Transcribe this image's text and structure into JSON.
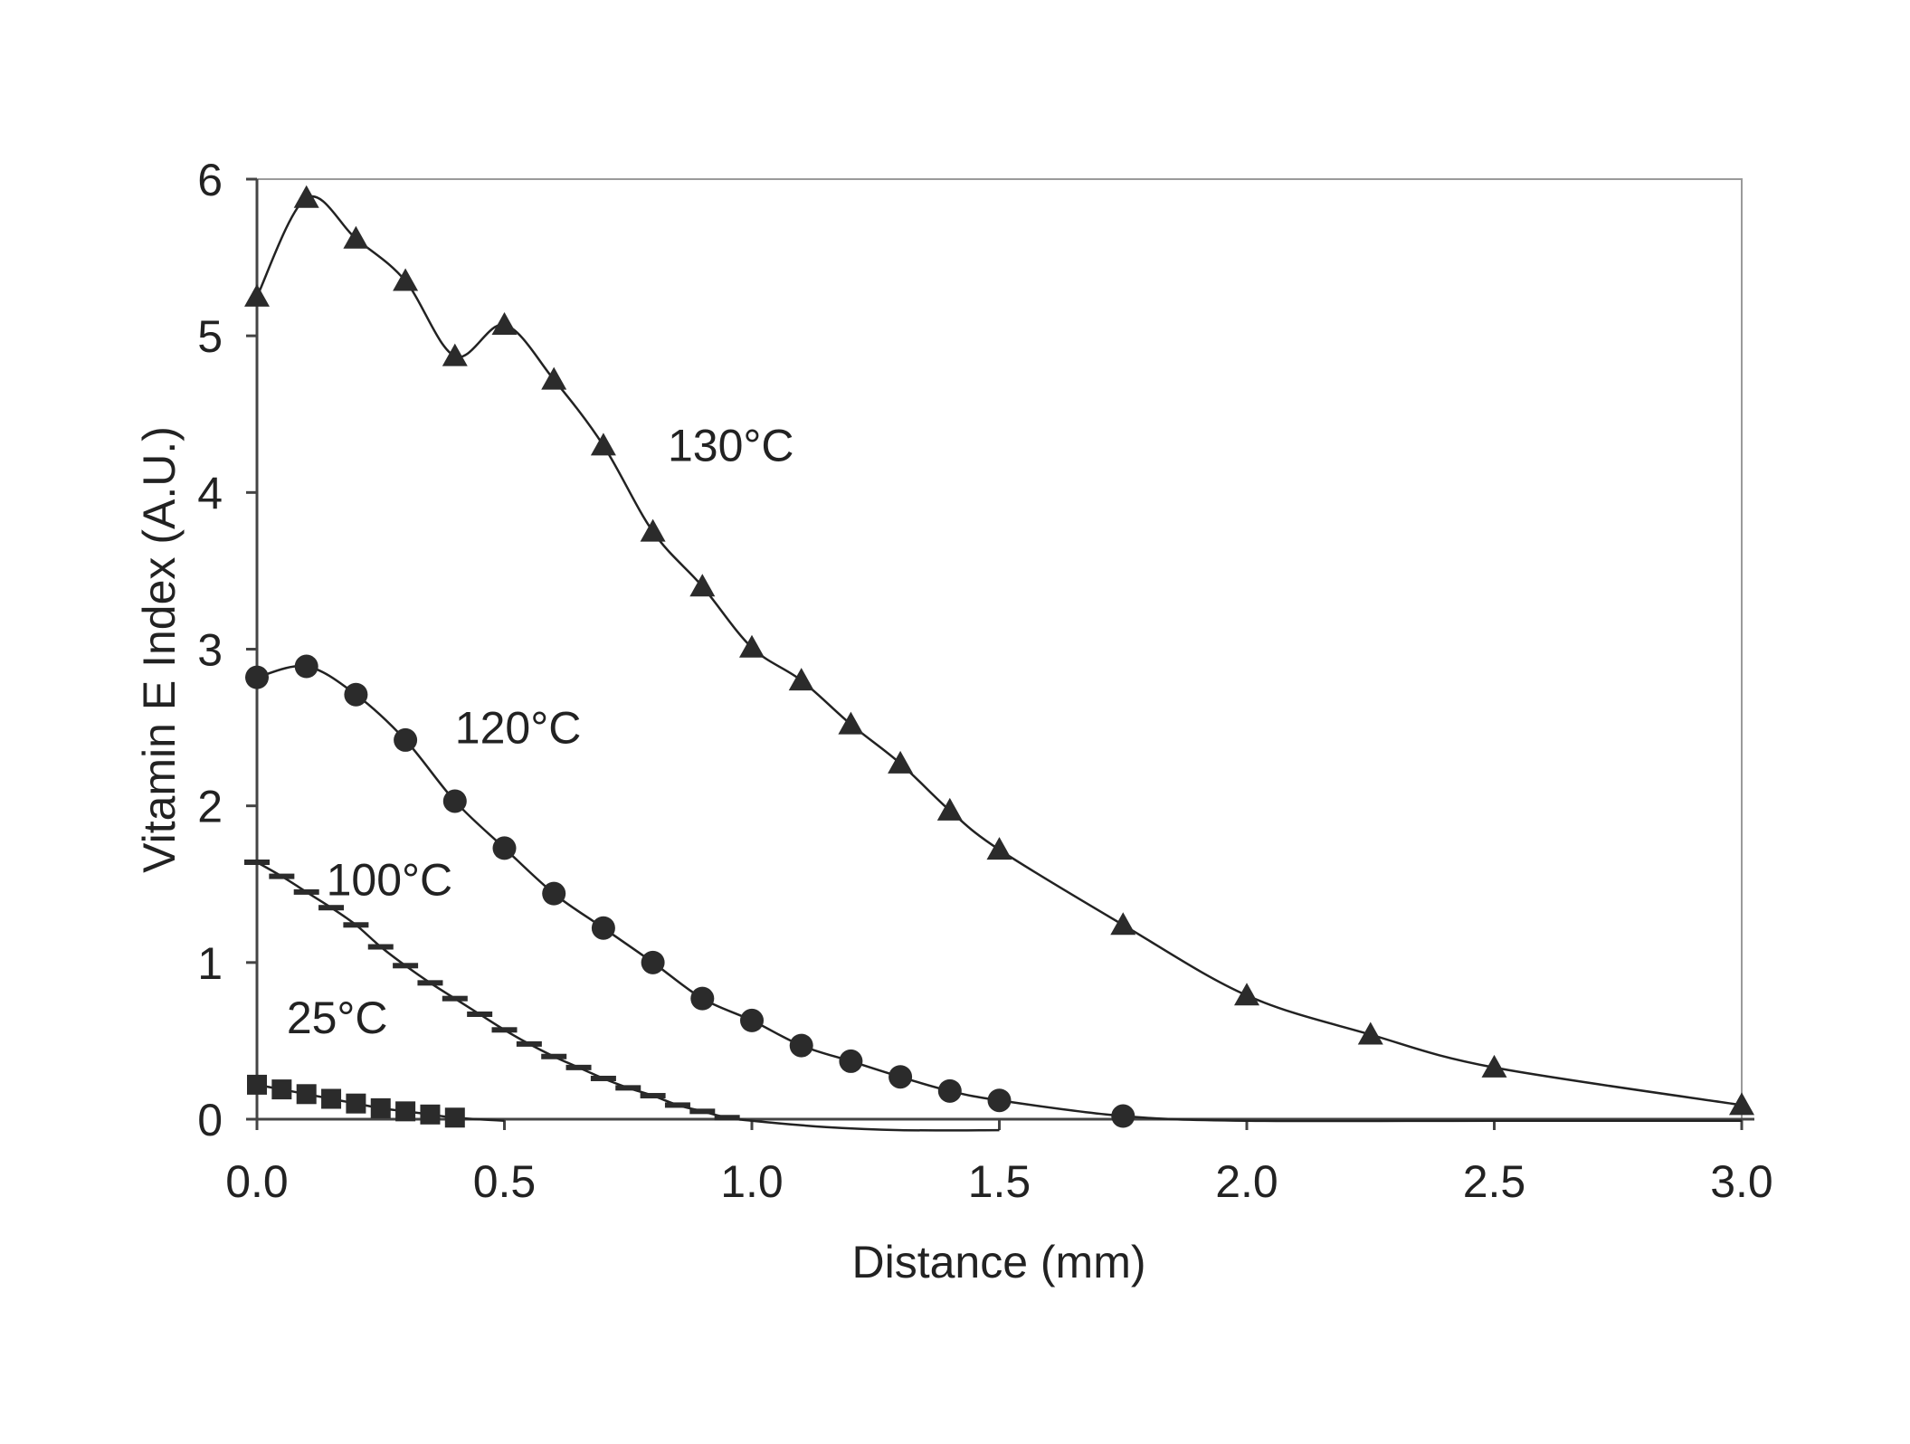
{
  "chart_data": {
    "type": "line",
    "xlabel": "Distance (mm)",
    "ylabel": "Vitamin E Index (A.U.)",
    "xlim": [
      0,
      3.0
    ],
    "ylim": [
      0,
      6
    ],
    "x_ticks": [
      "0.0",
      "0.5",
      "1.0",
      "1.5",
      "2.0",
      "2.5",
      "3.0"
    ],
    "y_ticks": [
      "0",
      "1",
      "2",
      "3",
      "4",
      "5",
      "6"
    ],
    "grid": false,
    "legend": "none",
    "series": [
      {
        "name": "130°C",
        "marker": "triangle",
        "x": [
          0.0,
          0.1,
          0.2,
          0.3,
          0.4,
          0.5,
          0.6,
          0.7,
          0.8,
          0.9,
          1.0,
          1.1,
          1.2,
          1.3,
          1.4,
          1.5,
          1.75,
          2.0,
          2.25,
          2.5,
          3.0
        ],
        "y": [
          5.25,
          5.88,
          5.62,
          5.35,
          4.87,
          5.07,
          4.72,
          4.3,
          3.75,
          3.4,
          3.01,
          2.8,
          2.52,
          2.27,
          1.97,
          1.72,
          1.24,
          0.79,
          0.54,
          0.33,
          0.09
        ]
      },
      {
        "name": "120°C",
        "marker": "circle",
        "x": [
          0.0,
          0.1,
          0.2,
          0.3,
          0.4,
          0.5,
          0.6,
          0.7,
          0.8,
          0.9,
          1.0,
          1.1,
          1.2,
          1.3,
          1.4,
          1.5,
          1.75
        ],
        "y": [
          2.82,
          2.89,
          2.71,
          2.42,
          2.03,
          1.73,
          1.44,
          1.22,
          1.0,
          0.77,
          0.63,
          0.47,
          0.37,
          0.27,
          0.18,
          0.12,
          0.02
        ],
        "tail_x": [
          2.0,
          2.5,
          3.0
        ],
        "tail_y": [
          -0.01,
          -0.01,
          -0.01
        ]
      },
      {
        "name": "100°C",
        "marker": "dash",
        "x": [
          0.0,
          0.05,
          0.1,
          0.15,
          0.2,
          0.25,
          0.3,
          0.35,
          0.4,
          0.45,
          0.5,
          0.55,
          0.6,
          0.65,
          0.7,
          0.75,
          0.8,
          0.85,
          0.9,
          0.95
        ],
        "y": [
          1.64,
          1.55,
          1.45,
          1.35,
          1.24,
          1.1,
          0.98,
          0.87,
          0.77,
          0.67,
          0.57,
          0.48,
          0.4,
          0.33,
          0.26,
          0.2,
          0.15,
          0.09,
          0.05,
          0.01
        ],
        "tail_x": [
          1.0,
          1.15,
          1.3,
          1.5
        ],
        "tail_y": [
          -0.01,
          -0.05,
          -0.07,
          -0.07
        ]
      },
      {
        "name": "25°C",
        "marker": "square",
        "x": [
          0.0,
          0.05,
          0.1,
          0.15,
          0.2,
          0.25,
          0.3,
          0.35,
          0.4
        ],
        "y": [
          0.22,
          0.19,
          0.16,
          0.13,
          0.1,
          0.07,
          0.05,
          0.03,
          0.01
        ],
        "tail_x": [
          0.5
        ],
        "tail_y": [
          -0.01
        ]
      }
    ],
    "annotations": [
      {
        "text": "130°C",
        "x": 0.83,
        "y": 4.2
      },
      {
        "text": "120°C",
        "x": 0.4,
        "y": 2.4
      },
      {
        "text": "100°C",
        "x": 0.14,
        "y": 1.43
      },
      {
        "text": "25°C",
        "x": 0.06,
        "y": 0.55
      }
    ],
    "colors": {
      "line": "#222222",
      "marker": "#2b2b2b",
      "axis": "#444444"
    }
  }
}
